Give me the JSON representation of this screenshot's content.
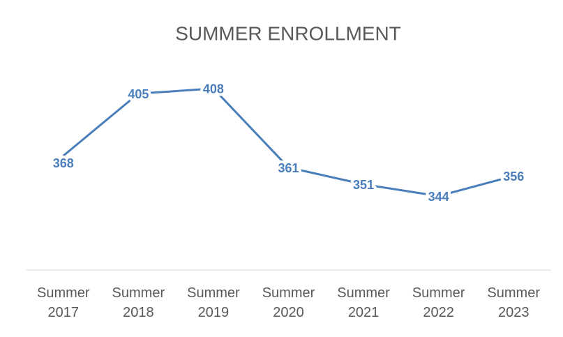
{
  "chart_data": {
    "type": "line",
    "title": "SUMMER ENROLLMENT",
    "categories": [
      "Summer 2017",
      "Summer 2018",
      "Summer 2019",
      "Summer 2020",
      "Summer 2021",
      "Summer 2022",
      "Summer 2023"
    ],
    "values": [
      368,
      405,
      408,
      361,
      351,
      344,
      356
    ],
    "color": "#4a7ebb",
    "ylim": [
      300,
      420
    ]
  }
}
